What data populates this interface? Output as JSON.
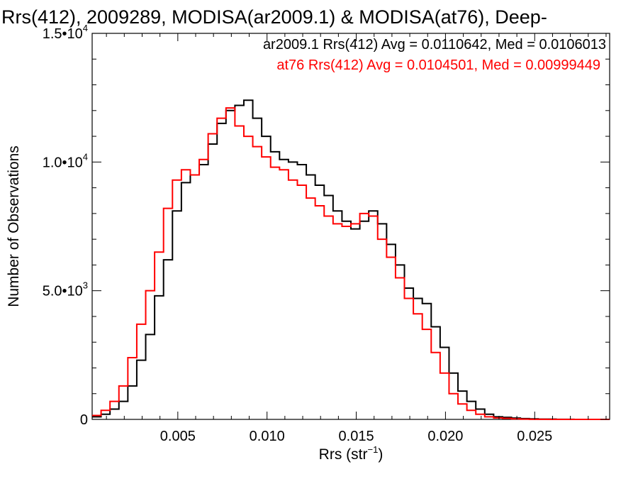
{
  "chart_data": {
    "type": "line",
    "title": "Rrs(412), 2009289, MODISA(ar2009.1) & MODISA(at76), Deep-",
    "xlabel": {
      "base": "Rrs (str",
      "sup": "−1",
      "close": ")"
    },
    "ylabel": "Number of Observations",
    "xlim": [
      0.0002,
      0.0292
    ],
    "ylim": [
      0,
      15000
    ],
    "x_ticks": [
      {
        "value": 0.005,
        "label": "0.005"
      },
      {
        "value": 0.01,
        "label": "0.010"
      },
      {
        "value": 0.015,
        "label": "0.015"
      },
      {
        "value": 0.02,
        "label": "0.020"
      },
      {
        "value": 0.025,
        "label": "0.025"
      }
    ],
    "y_ticks": [
      {
        "value": 0,
        "mant": "0",
        "exp": ""
      },
      {
        "value": 5000,
        "mant": "5.0•10",
        "exp": "3"
      },
      {
        "value": 10000,
        "mant": "1.0•10",
        "exp": "4"
      },
      {
        "value": 15000,
        "mant": "1.5•10",
        "exp": "4"
      }
    ],
    "grid": false,
    "legend_position": "top-right",
    "series": [
      {
        "name": "ar2009.1",
        "stats": "ar2009.1 Rrs(412) Avg = 0.0110642, Med = 0.0106013",
        "color": "#000000",
        "x": [
          0.0002,
          0.0007,
          0.0012,
          0.0017,
          0.0022,
          0.0027,
          0.0032,
          0.0037,
          0.0042,
          0.0047,
          0.0052,
          0.0057,
          0.0062,
          0.0067,
          0.0072,
          0.0077,
          0.0082,
          0.0087,
          0.0092,
          0.0097,
          0.0102,
          0.0107,
          0.0112,
          0.0117,
          0.0122,
          0.0127,
          0.0132,
          0.0137,
          0.0142,
          0.0147,
          0.0152,
          0.0157,
          0.0162,
          0.0167,
          0.0172,
          0.0177,
          0.0182,
          0.0187,
          0.0192,
          0.0197,
          0.0202,
          0.0207,
          0.0212,
          0.0217,
          0.0222,
          0.0227,
          0.0232,
          0.0237,
          0.0242,
          0.0247,
          0.0252,
          0.0257,
          0.0262,
          0.0267,
          0.0272,
          0.0277,
          0.0282,
          0.0287,
          0.0292
        ],
        "y": [
          100,
          200,
          400,
          700,
          1300,
          2300,
          3300,
          4800,
          6200,
          8100,
          9200,
          9500,
          9900,
          10700,
          11500,
          12000,
          12200,
          12400,
          11700,
          11000,
          10400,
          10100,
          10000,
          9900,
          9500,
          9100,
          8700,
          8100,
          7700,
          7400,
          7700,
          8100,
          7600,
          6800,
          6000,
          5100,
          4700,
          4500,
          3600,
          2800,
          1800,
          1100,
          700,
          400,
          200,
          100,
          80,
          50,
          30,
          20,
          10,
          10,
          5,
          5,
          0,
          0,
          0,
          0,
          0
        ]
      },
      {
        "name": "at76",
        "stats": "at76 Rrs(412) Avg = 0.0104501, Med = 0.00999449",
        "color": "#ff0000",
        "x": [
          0.0002,
          0.0007,
          0.0012,
          0.0017,
          0.0022,
          0.0027,
          0.0032,
          0.0037,
          0.0042,
          0.0047,
          0.0052,
          0.0057,
          0.0062,
          0.0067,
          0.0072,
          0.0077,
          0.0082,
          0.0087,
          0.0092,
          0.0097,
          0.0102,
          0.0107,
          0.0112,
          0.0117,
          0.0122,
          0.0127,
          0.0132,
          0.0137,
          0.0142,
          0.0147,
          0.0152,
          0.0157,
          0.0162,
          0.0167,
          0.0172,
          0.0177,
          0.0182,
          0.0187,
          0.0192,
          0.0197,
          0.0202,
          0.0207,
          0.0212,
          0.0217,
          0.0222,
          0.0227,
          0.0232,
          0.0237,
          0.0242,
          0.0247,
          0.0252,
          0.0257,
          0.0262,
          0.0267,
          0.0272,
          0.0277,
          0.0282,
          0.0287,
          0.0292
        ],
        "y": [
          150,
          350,
          700,
          1300,
          2400,
          3700,
          5000,
          6500,
          8200,
          9300,
          9700,
          9500,
          10100,
          11100,
          11700,
          12100,
          11400,
          11000,
          10600,
          10200,
          9800,
          9700,
          9300,
          9100,
          8600,
          8300,
          7900,
          7600,
          7500,
          7600,
          8000,
          7900,
          7000,
          6300,
          5500,
          4700,
          4100,
          3500,
          2600,
          1800,
          1000,
          600,
          350,
          200,
          100,
          60,
          40,
          20,
          10,
          5,
          5,
          0,
          0,
          0,
          0,
          0,
          0,
          0,
          0
        ]
      }
    ]
  }
}
